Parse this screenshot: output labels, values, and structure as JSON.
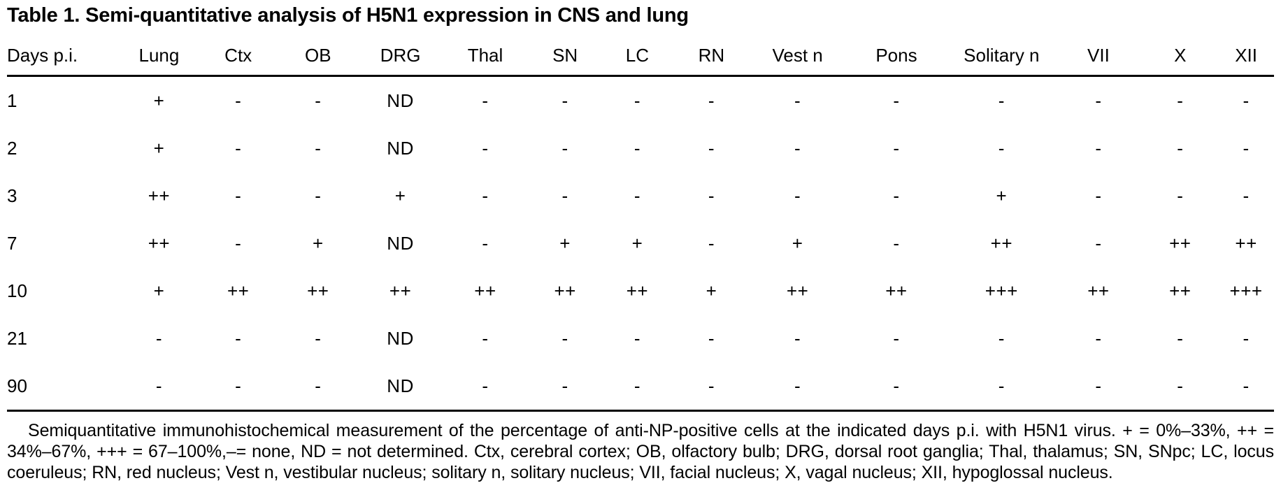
{
  "page": {
    "background": "#ffffff",
    "text_color": "#000000"
  },
  "table": {
    "title": "Table 1. Semi-quantitative analysis of H5N1 expression in CNS and lung",
    "columns": [
      "Days p.i.",
      "Lung",
      "Ctx",
      "OB",
      "DRG",
      "Thal",
      "SN",
      "LC",
      "RN",
      "Vest n",
      "Pons",
      "Solitary n",
      "VII",
      "X",
      "XII"
    ],
    "rows": [
      {
        "day": "1",
        "values": [
          "+",
          "-",
          "-",
          "ND",
          "-",
          "-",
          "-",
          "-",
          "-",
          "-",
          "-",
          "-",
          "-",
          "-"
        ]
      },
      {
        "day": "2",
        "values": [
          "+",
          "-",
          "-",
          "ND",
          "-",
          "-",
          "-",
          "-",
          "-",
          "-",
          "-",
          "-",
          "-",
          "-"
        ]
      },
      {
        "day": "3",
        "values": [
          "++",
          "-",
          "-",
          "+",
          "-",
          "-",
          "-",
          "-",
          "-",
          "-",
          "+",
          "-",
          "-",
          "-"
        ]
      },
      {
        "day": "7",
        "values": [
          "++",
          "-",
          "+",
          "ND",
          "-",
          "+",
          "+",
          "-",
          "+",
          "-",
          "++",
          "-",
          "++",
          "++"
        ]
      },
      {
        "day": "10",
        "values": [
          "+",
          "++",
          "++",
          "++",
          "++",
          "++",
          "++",
          "+",
          "++",
          "++",
          "+++",
          "++",
          "++",
          "+++"
        ]
      },
      {
        "day": "21",
        "values": [
          "-",
          "-",
          "-",
          "ND",
          "-",
          "-",
          "-",
          "-",
          "-",
          "-",
          "-",
          "-",
          "-",
          "-"
        ]
      },
      {
        "day": "90",
        "values": [
          "-",
          "-",
          "-",
          "ND",
          "-",
          "-",
          "-",
          "-",
          "-",
          "-",
          "-",
          "-",
          "-",
          "-"
        ]
      }
    ],
    "footnote": "Semiquantitative immunohistochemical measurement of the percentage of anti-NP-positive cells at the indicated days p.i. with H5N1 virus. + = 0%–33%, ++ = 34%–67%, +++ = 67–100%,–= none, ND = not determined. Ctx, cerebral cortex; OB, olfactory bulb; DRG, dorsal root ganglia; Thal, thalamus; SN, SNpc; LC, locus coeruleus; RN, red nucleus; Vest n, vestibular nucleus; solitary n, solitary nucleus; VII, facial nucleus; X, vagal nucleus; XII, hypoglossal nucleus."
  }
}
